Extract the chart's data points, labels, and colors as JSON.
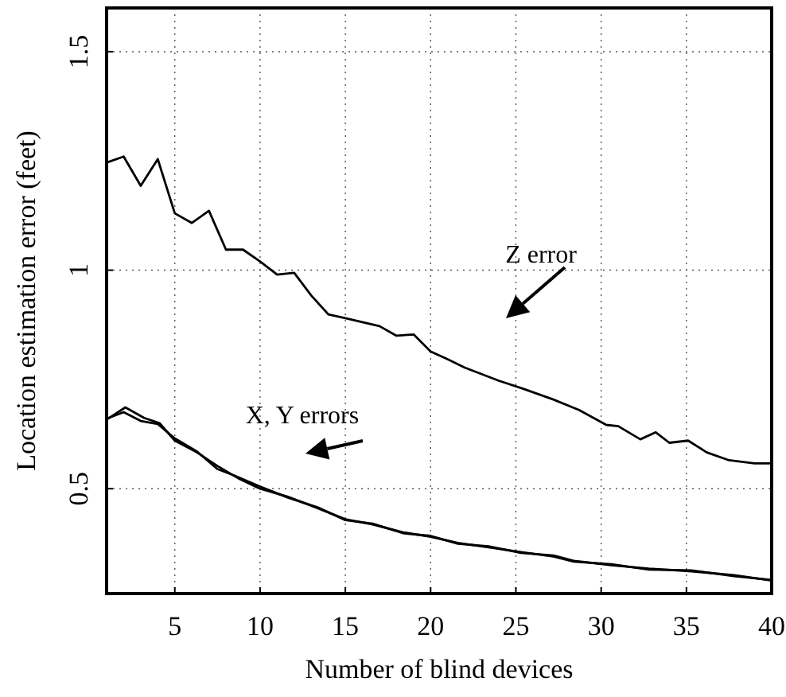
{
  "chart_data": {
    "type": "line",
    "xlabel": "Number of blind devices",
    "ylabel": "Location estimation error (feet)",
    "xlim": [
      1,
      40
    ],
    "xticks": [
      5,
      10,
      15,
      20,
      25,
      30,
      35,
      40
    ],
    "ylim": [
      0.26,
      1.6
    ],
    "yticks": [
      0.5,
      1,
      1.5
    ],
    "grid": true,
    "marker": "none",
    "line_style": "solid",
    "series": [
      {
        "color": "#000000",
        "x": [
          1,
          2,
          3,
          4,
          5,
          6,
          7,
          8,
          9,
          10,
          11,
          12,
          13,
          14,
          15,
          17,
          18,
          19,
          20,
          21,
          22,
          24,
          25.4,
          27.2,
          28.7,
          30.3,
          31,
          32.3,
          33.2,
          34,
          35.1,
          36.2,
          37.5,
          39,
          40
        ],
        "values": [
          1.246,
          1.26,
          1.193,
          1.254,
          1.13,
          1.108,
          1.136,
          1.047,
          1.047,
          1.02,
          0.99,
          0.994,
          0.942,
          0.899,
          0.89,
          0.872,
          0.85,
          0.853,
          0.814,
          0.796,
          0.777,
          0.747,
          0.729,
          0.704,
          0.68,
          0.646,
          0.643,
          0.613,
          0.629,
          0.605,
          0.61,
          0.583,
          0.565,
          0.558,
          0.558
        ]
      },
      {
        "color": "#000000",
        "x": [
          1,
          2.1,
          3.2,
          4.1,
          5,
          6.3,
          7.5,
          8.8,
          10,
          11.6,
          13.4,
          15,
          16.6,
          18.4,
          20,
          21.6,
          23.4,
          25.3,
          27.2,
          28.4,
          30.6,
          32.8,
          35.3,
          37.8,
          40
        ],
        "values": [
          0.658,
          0.686,
          0.662,
          0.65,
          0.61,
          0.583,
          0.552,
          0.522,
          0.5,
          0.482,
          0.455,
          0.43,
          0.418,
          0.4,
          0.39,
          0.376,
          0.366,
          0.355,
          0.345,
          0.333,
          0.327,
          0.315,
          0.313,
          0.3,
          0.291
        ]
      },
      {
        "color": "#000000",
        "x": [
          1,
          2,
          3,
          4,
          5,
          6.3,
          7.5,
          8.5,
          10,
          11.6,
          13.4,
          15,
          16.6,
          18.4,
          20,
          21.6,
          23.4,
          25.3,
          27.2,
          28.4,
          30.6,
          32.8,
          35.3,
          37.8,
          40
        ],
        "values": [
          0.66,
          0.675,
          0.655,
          0.648,
          0.615,
          0.585,
          0.545,
          0.53,
          0.505,
          0.48,
          0.457,
          0.428,
          0.42,
          0.398,
          0.392,
          0.374,
          0.368,
          0.353,
          0.347,
          0.335,
          0.325,
          0.317,
          0.311,
          0.302,
          0.29
        ]
      }
    ],
    "annotations": [
      "Z error",
      "X, Y errors"
    ]
  }
}
